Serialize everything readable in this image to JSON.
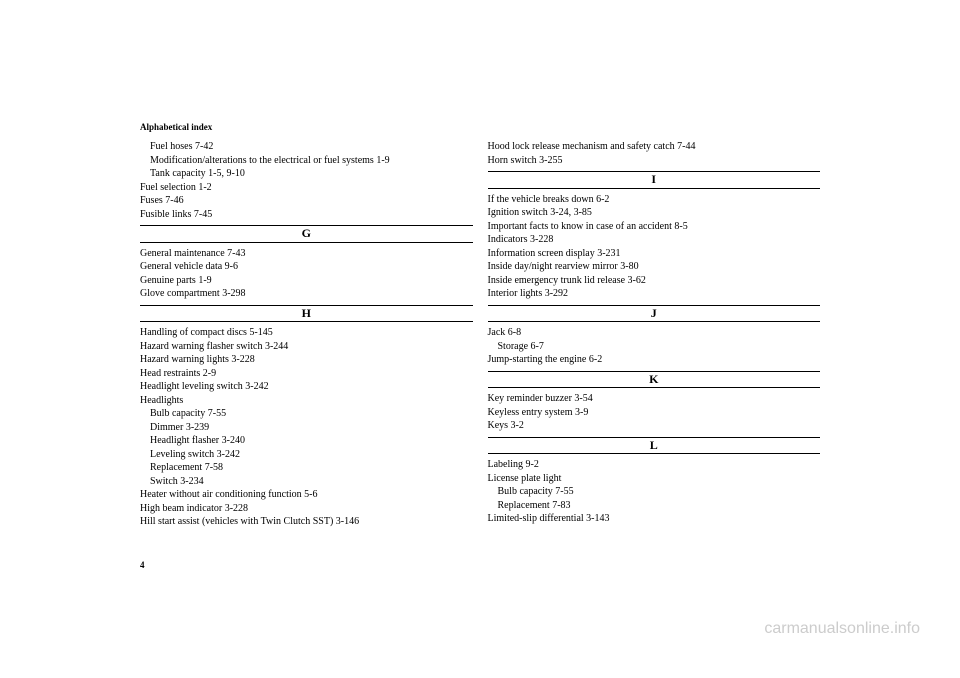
{
  "header": {
    "title": "Alphabetical index"
  },
  "page_number": "4",
  "watermark": "carmanualsonline.info",
  "left_col": {
    "top_entries": [
      {
        "text": "Fuel hoses  7-42",
        "sub": true
      },
      {
        "text": "Modification/alterations to the electrical or fuel systems  1-9",
        "sub": true
      },
      {
        "text": "Tank capacity  1-5, 9-10",
        "sub": true
      },
      {
        "text": "Fuel selection  1-2",
        "sub": false
      },
      {
        "text": "Fuses  7-46",
        "sub": false
      },
      {
        "text": "Fusible links  7-45",
        "sub": false
      }
    ],
    "sections": [
      {
        "letter": "G",
        "entries": [
          {
            "text": "General maintenance  7-43",
            "sub": false
          },
          {
            "text": "General vehicle data  9-6",
            "sub": false
          },
          {
            "text": "Genuine parts  1-9",
            "sub": false
          },
          {
            "text": "Glove compartment  3-298",
            "sub": false
          }
        ]
      },
      {
        "letter": "H",
        "entries": [
          {
            "text": "Handling of compact discs  5-145",
            "sub": false
          },
          {
            "text": "Hazard warning flasher switch  3-244",
            "sub": false
          },
          {
            "text": "Hazard warning lights  3-228",
            "sub": false
          },
          {
            "text": "Head restraints  2-9",
            "sub": false
          },
          {
            "text": "Headlight leveling switch  3-242",
            "sub": false
          },
          {
            "text": "Headlights",
            "sub": false
          },
          {
            "text": "Bulb capacity  7-55",
            "sub": true
          },
          {
            "text": "Dimmer  3-239",
            "sub": true
          },
          {
            "text": "Headlight flasher  3-240",
            "sub": true
          },
          {
            "text": "Leveling switch  3-242",
            "sub": true
          },
          {
            "text": "Replacement  7-58",
            "sub": true
          },
          {
            "text": "Switch  3-234",
            "sub": true
          },
          {
            "text": "Heater without air conditioning function  5-6",
            "sub": false
          },
          {
            "text": "High beam indicator  3-228",
            "sub": false
          },
          {
            "text": "Hill start assist (vehicles with Twin Clutch SST)  3-146",
            "sub": false
          }
        ]
      }
    ]
  },
  "right_col": {
    "top_entries": [
      {
        "text": "Hood lock release mechanism and safety catch  7-44",
        "sub": false
      },
      {
        "text": "Horn switch  3-255",
        "sub": false
      }
    ],
    "sections": [
      {
        "letter": "I",
        "entries": [
          {
            "text": "If the vehicle breaks down  6-2",
            "sub": false
          },
          {
            "text": "Ignition switch  3-24, 3-85",
            "sub": false
          },
          {
            "text": "Important facts to know in case of an accident  8-5",
            "sub": false
          },
          {
            "text": "Indicators  3-228",
            "sub": false
          },
          {
            "text": "Information screen display  3-231",
            "sub": false
          },
          {
            "text": "Inside day/night rearview mirror  3-80",
            "sub": false
          },
          {
            "text": "Inside emergency trunk lid release  3-62",
            "sub": false
          },
          {
            "text": "Interior lights  3-292",
            "sub": false
          }
        ]
      },
      {
        "letter": "J",
        "entries": [
          {
            "text": "Jack  6-8",
            "sub": false
          },
          {
            "text": "Storage  6-7",
            "sub": true
          },
          {
            "text": "Jump-starting the engine  6-2",
            "sub": false
          }
        ]
      },
      {
        "letter": "K",
        "entries": [
          {
            "text": "Key reminder buzzer  3-54",
            "sub": false
          },
          {
            "text": "Keyless entry system  3-9",
            "sub": false
          },
          {
            "text": "Keys  3-2",
            "sub": false
          }
        ]
      },
      {
        "letter": "L",
        "entries": [
          {
            "text": "Labeling  9-2",
            "sub": false
          },
          {
            "text": "License plate light",
            "sub": false
          },
          {
            "text": "Bulb capacity  7-55",
            "sub": true
          },
          {
            "text": "Replacement  7-83",
            "sub": true
          },
          {
            "text": "Limited-slip differential  3-143",
            "sub": false
          }
        ]
      }
    ]
  }
}
